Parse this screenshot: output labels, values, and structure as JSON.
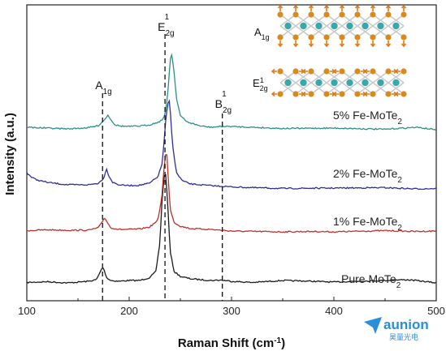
{
  "chart_data": {
    "type": "line",
    "xlabel": "Raman Shift (cm",
    "xlabel_sup": "-1",
    "xlabel_suffix": ")",
    "ylabel": "Intensity (a.u.)",
    "xlim": [
      100,
      500
    ],
    "x_ticks": [
      "100",
      "200",
      "300",
      "400",
      "500"
    ],
    "grid": false,
    "peak_markers": [
      {
        "base": "A",
        "sub": "1g",
        "sup": "",
        "x": 174
      },
      {
        "base": "E",
        "sub": "2g",
        "sup": "1",
        "x": 235
      },
      {
        "base": "B",
        "sub": "2g",
        "sup": "1",
        "x": 291
      }
    ],
    "series": [
      {
        "label": "Pure MoTe",
        "label_sub": "2",
        "color": "#1a1a1a",
        "x": [
          100,
          120,
          140,
          160,
          168,
          172,
          174,
          176,
          178,
          182,
          190,
          200,
          210,
          220,
          226,
          230,
          232,
          234,
          235,
          236,
          238,
          240,
          244,
          250,
          260,
          280,
          290,
          300,
          320,
          350,
          380,
          400,
          420,
          450,
          470,
          480,
          500
        ],
        "y": [
          0.3,
          0.5,
          0.2,
          0.6,
          1.0,
          3.0,
          4.2,
          3.0,
          1.5,
          0.8,
          0.6,
          0.8,
          0.8,
          1.5,
          3.0,
          10.0,
          20.0,
          26.0,
          28.0,
          26.0,
          18.0,
          8.0,
          3.0,
          1.8,
          1.2,
          0.8,
          0.9,
          0.6,
          0.3,
          0.8,
          0.6,
          0.4,
          0.6,
          0.8,
          1.0,
          0.8,
          0.2
        ]
      },
      {
        "label": "1% Fe-MoTe",
        "label_sub": "2",
        "color": "#c0302c",
        "x": [
          100,
          120,
          140,
          160,
          170,
          174,
          176,
          178,
          182,
          190,
          200,
          210,
          220,
          228,
          232,
          234,
          236,
          237,
          238,
          240,
          244,
          250,
          260,
          280,
          300,
          320,
          350,
          380,
          400,
          450,
          480,
          500
        ],
        "y": [
          0.5,
          0.7,
          0.6,
          0.6,
          1.2,
          2.8,
          3.8,
          2.8,
          1.2,
          0.8,
          0.8,
          0.9,
          1.4,
          3.0,
          9.0,
          16.0,
          20.0,
          19.0,
          14.0,
          6.0,
          2.5,
          1.6,
          1.0,
          0.8,
          0.4,
          0.3,
          0.2,
          0.3,
          0.2,
          0.5,
          0.3,
          0.4
        ]
      },
      {
        "label": "2% Fe-MoTe",
        "label_sub": "2",
        "color": "#2c2f96",
        "x": [
          100,
          105,
          110,
          120,
          140,
          160,
          170,
          175,
          178,
          180,
          184,
          190,
          200,
          210,
          220,
          228,
          232,
          234,
          236,
          238,
          239,
          240,
          242,
          246,
          252,
          260,
          280,
          300,
          320,
          350,
          400,
          450,
          480,
          500
        ],
        "y": [
          4.0,
          2.8,
          2.2,
          1.6,
          1.0,
          1.0,
          1.4,
          2.6,
          5.0,
          3.2,
          1.6,
          1.0,
          0.8,
          0.9,
          1.4,
          3.0,
          6.0,
          11.0,
          18.0,
          21.0,
          22.0,
          20.0,
          12.0,
          4.0,
          2.0,
          1.2,
          0.8,
          0.5,
          0.3,
          0.1,
          0.2,
          0.3,
          0.0,
          0.1
        ]
      },
      {
        "label": "5% Fe-MoTe",
        "label_sub": "2",
        "color": "#2b8f86",
        "x": [
          100,
          120,
          140,
          160,
          170,
          176,
          179,
          182,
          186,
          192,
          200,
          210,
          220,
          230,
          234,
          236,
          238,
          240,
          241,
          242,
          244,
          246,
          250,
          256,
          262,
          270,
          280,
          290,
          300,
          320,
          350,
          400,
          450,
          480,
          500
        ],
        "y": [
          0.6,
          0.4,
          0.2,
          0.5,
          1.0,
          2.5,
          3.6,
          2.6,
          1.2,
          0.9,
          0.8,
          0.9,
          1.2,
          2.0,
          3.0,
          5.0,
          10.0,
          17.0,
          19.0,
          18.0,
          14.0,
          8.0,
          3.5,
          2.0,
          1.5,
          0.9,
          0.6,
          0.8,
          0.8,
          0.6,
          0.3,
          0.4,
          0.1,
          0.6,
          0.0
        ]
      }
    ],
    "inset": {
      "labels": [
        {
          "base": "A",
          "sub": "1g",
          "sup": ""
        },
        {
          "base": "E",
          "sub": "2g",
          "sup": "1"
        }
      ]
    }
  },
  "watermark": {
    "brand": "aunion",
    "subtitle": "昊量光电",
    "color": "#2a8fd6"
  }
}
